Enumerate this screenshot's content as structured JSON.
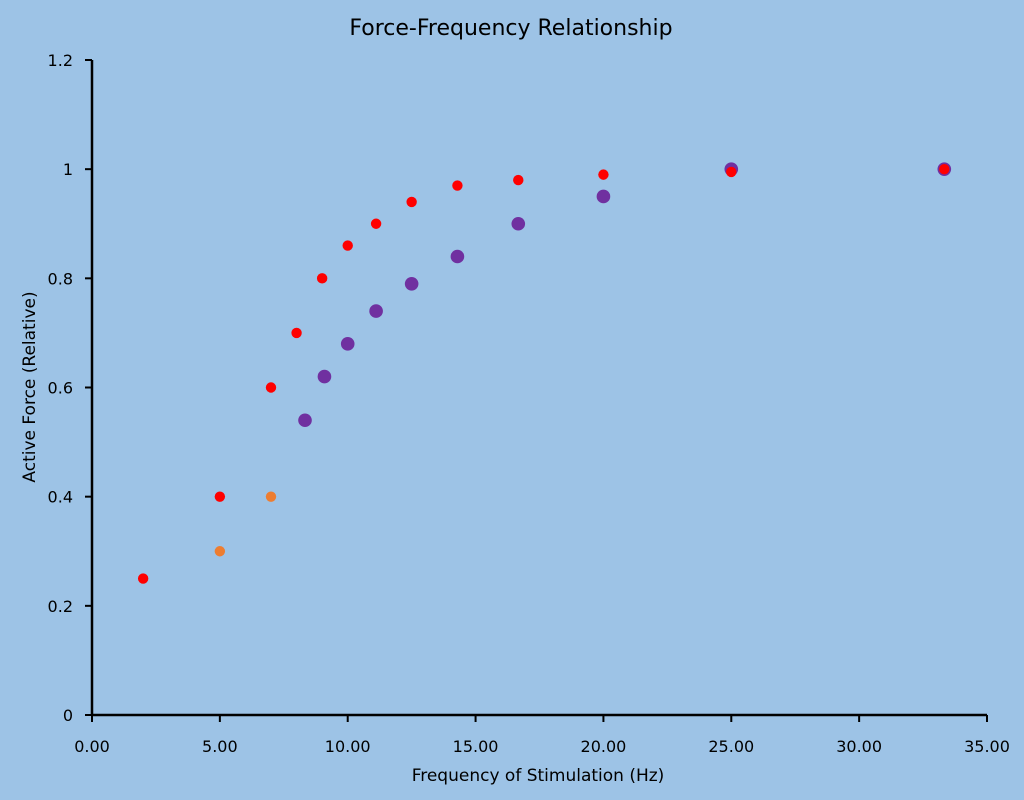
{
  "chart_data": {
    "type": "scatter",
    "title": "Force-Frequency Relationship",
    "xlabel": "Frequency of Stimulation  (Hz)",
    "ylabel": "Active Force (Relative)",
    "xlim": [
      0,
      35
    ],
    "ylim": [
      0,
      1.2
    ],
    "x_ticks": [
      "0.00",
      "5.00",
      "10.00",
      "15.00",
      "20.00",
      "25.00",
      "30.00",
      "35.00"
    ],
    "y_ticks": [
      "0",
      "0.2",
      "0.4",
      "0.6",
      "0.8",
      "1",
      "1.2"
    ],
    "grid": false,
    "legend": "none",
    "series": [
      {
        "color": "#7030a0",
        "marker_size": "large",
        "points": [
          {
            "x": 8.33,
            "y": 0.54
          },
          {
            "x": 9.09,
            "y": 0.62
          },
          {
            "x": 10.0,
            "y": 0.68
          },
          {
            "x": 11.11,
            "y": 0.74
          },
          {
            "x": 12.5,
            "y": 0.79
          },
          {
            "x": 14.29,
            "y": 0.84
          },
          {
            "x": 16.67,
            "y": 0.9
          },
          {
            "x": 20.0,
            "y": 0.95
          },
          {
            "x": 25.0,
            "y": 1.0
          },
          {
            "x": 33.33,
            "y": 1.0
          }
        ]
      },
      {
        "color": "#ff0000",
        "marker_size": "small",
        "points": [
          {
            "x": 2.0,
            "y": 0.25
          },
          {
            "x": 5.0,
            "y": 0.4
          },
          {
            "x": 7.0,
            "y": 0.6
          },
          {
            "x": 8.0,
            "y": 0.7
          },
          {
            "x": 9.0,
            "y": 0.8
          },
          {
            "x": 10.0,
            "y": 0.86
          },
          {
            "x": 11.11,
            "y": 0.9
          },
          {
            "x": 12.5,
            "y": 0.94
          },
          {
            "x": 14.29,
            "y": 0.97
          },
          {
            "x": 16.67,
            "y": 0.98
          },
          {
            "x": 20.0,
            "y": 0.99
          },
          {
            "x": 25.0,
            "y": 0.995
          },
          {
            "x": 33.33,
            "y": 1.0
          }
        ]
      },
      {
        "color": "#ed7d31",
        "marker_size": "small",
        "points": [
          {
            "x": 5.0,
            "y": 0.3
          },
          {
            "x": 7.0,
            "y": 0.4
          }
        ]
      }
    ]
  }
}
